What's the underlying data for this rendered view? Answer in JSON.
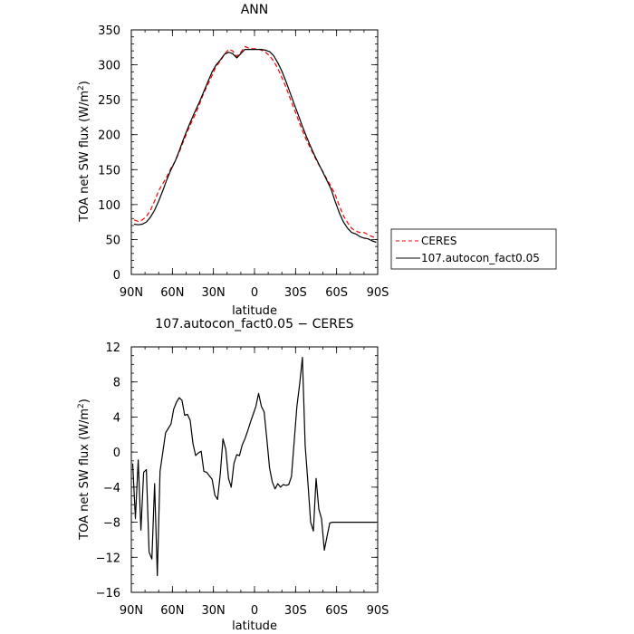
{
  "chart_data": [
    {
      "type": "line",
      "title": "ANN",
      "xlabel": "latitude",
      "ylabel": "TOA net SW flux (W/m²)",
      "ylim": [
        0,
        350
      ],
      "yticks": [
        0,
        50,
        100,
        150,
        200,
        250,
        300,
        350
      ],
      "xlim": [
        90,
        -90
      ],
      "xticks": [
        90,
        60,
        30,
        0,
        -30,
        -60,
        -90
      ],
      "xtick_labels": [
        "90N",
        "60N",
        "30N",
        "0",
        "30S",
        "60S",
        "90S"
      ],
      "legend_position": "outside-right",
      "series": [
        {
          "name": "CERES",
          "color": "#ff0000",
          "dash": "dashed",
          "x": [
            88,
            85,
            82,
            79,
            76,
            73,
            70,
            67,
            64,
            61,
            58,
            55,
            52,
            49,
            46,
            43,
            40,
            37,
            34,
            31,
            28,
            25,
            22,
            19,
            16,
            13,
            10,
            7,
            4,
            1,
            -2,
            -5,
            -8,
            -11,
            -14,
            -17,
            -20,
            -23,
            -26,
            -29,
            -32,
            -35,
            -38,
            -41,
            -44,
            -47,
            -50,
            -53,
            -56,
            -59,
            -62,
            -65,
            -68,
            -71,
            -74,
            -77,
            -80,
            -83,
            -86,
            -89
          ],
          "y": [
            78,
            76,
            78,
            83,
            92,
            105,
            120,
            130,
            140,
            152,
            162,
            175,
            190,
            205,
            218,
            230,
            245,
            260,
            272,
            285,
            298,
            305,
            315,
            322,
            320,
            312,
            318,
            326,
            324,
            323,
            323,
            321,
            318,
            313,
            305,
            295,
            282,
            268,
            252,
            237,
            221,
            206,
            192,
            180,
            168,
            157,
            147,
            136,
            126,
            114,
            98,
            84,
            74,
            66,
            62,
            60,
            60,
            57,
            54,
            52
          ]
        },
        {
          "name": "107.autocon_fact0.05",
          "color": "#000000",
          "dash": "solid",
          "x": [
            88,
            85,
            82,
            79,
            76,
            73,
            70,
            67,
            64,
            61,
            58,
            55,
            52,
            49,
            46,
            43,
            40,
            37,
            34,
            31,
            28,
            25,
            22,
            19,
            16,
            13,
            10,
            7,
            4,
            1,
            -2,
            -5,
            -8,
            -11,
            -14,
            -17,
            -20,
            -23,
            -26,
            -29,
            -32,
            -35,
            -38,
            -41,
            -44,
            -47,
            -50,
            -53,
            -56,
            -59,
            -62,
            -65,
            -68,
            -71,
            -74,
            -77,
            -80,
            -83,
            -86,
            -89
          ],
          "y": [
            72,
            71,
            72,
            75,
            82,
            92,
            105,
            120,
            136,
            150,
            162,
            177,
            193,
            208,
            222,
            235,
            248,
            262,
            276,
            290,
            300,
            307,
            315,
            318,
            316,
            310,
            316,
            322,
            322,
            322,
            322,
            322,
            321,
            319,
            313,
            303,
            291,
            276,
            260,
            244,
            228,
            212,
            197,
            183,
            170,
            158,
            146,
            134,
            122,
            104,
            88,
            75,
            66,
            60,
            58,
            54,
            52,
            51,
            48,
            46
          ]
        }
      ]
    },
    {
      "type": "line",
      "title": "107.autocon_fact0.05 − CERES",
      "xlabel": "latitude",
      "ylabel": "TOA net SW flux (W/m²)",
      "ylim": [
        -16,
        12
      ],
      "yticks": [
        -16,
        -12,
        -8,
        -4,
        0,
        4,
        8,
        12
      ],
      "xlim": [
        90,
        -90
      ],
      "xticks": [
        90,
        60,
        30,
        0,
        -30,
        -60,
        -90
      ],
      "xtick_labels": [
        "90N",
        "60N",
        "30N",
        "0",
        "30S",
        "60S",
        "90S"
      ],
      "series": [
        {
          "color": "#000000",
          "dash": "solid",
          "x": [
            89,
            87,
            85,
            83,
            81,
            79,
            77,
            75,
            73,
            71,
            69,
            67,
            65,
            63,
            61,
            59,
            57,
            55,
            53,
            51,
            49,
            47,
            45,
            43,
            41,
            39,
            37,
            35,
            33,
            31,
            29,
            27,
            25,
            23,
            21,
            19,
            17,
            15,
            13,
            11,
            9,
            7,
            5,
            3,
            1,
            -1,
            -3,
            -5,
            -7,
            -9,
            -11,
            -13,
            -15,
            -17,
            -19,
            -21,
            -23,
            -25,
            -27,
            -29,
            -31,
            -33,
            -35,
            -37,
            -39,
            -41,
            -43,
            -45,
            -47,
            -49,
            -51,
            -53,
            -55,
            -57,
            -59,
            -61,
            -63,
            -65,
            -67,
            -69,
            -71,
            -73,
            -75,
            -77,
            -79,
            -81,
            -83,
            -85,
            -87,
            -89
          ],
          "y": [
            -1.3,
            -7.6,
            -0.9,
            -8.9,
            -2.3,
            -2.0,
            -11.4,
            -12.2,
            -3.6,
            -14.1,
            -2.2,
            0,
            2.2,
            2.7,
            3.2,
            4.9,
            5.7,
            6.2,
            5.9,
            4.2,
            4.3,
            3.6,
            1.0,
            -0.4,
            -0.1,
            0.1,
            -2.2,
            -2.3,
            -2.7,
            -3.1,
            -4.9,
            -5.4,
            -2.5,
            1.5,
            0.3,
            -3.0,
            -4.0,
            -1.3,
            -0.3,
            -0.4,
            0.8,
            1.5,
            2.4,
            3.4,
            4.3,
            5.2,
            6.7,
            5.2,
            4.6,
            1.5,
            -1.8,
            -3.4,
            -4.2,
            -3.6,
            -4.0,
            -3.7,
            -3.8,
            -3.7,
            -2.8,
            1.2,
            5.2,
            7.8,
            10.8,
            0.8,
            -3.4,
            -8.0,
            -9.0,
            -3.0,
            -6.5,
            -7.6,
            -11.2,
            -9.6,
            -8.1,
            -8.0,
            -8.0,
            -8.0,
            -8.0,
            -8.0,
            -8.0,
            -8.0,
            -8.0,
            -8.0,
            -8.0,
            -8.0,
            -8.0,
            -8.0,
            -8.0,
            -8.0,
            -8.0,
            -8.0
          ]
        }
      ]
    }
  ]
}
